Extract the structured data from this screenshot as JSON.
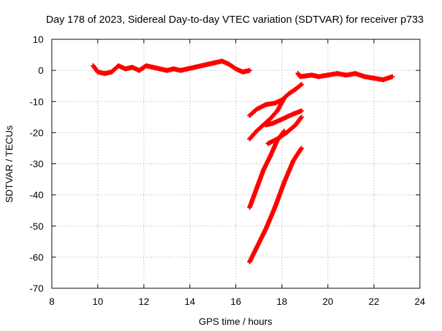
{
  "chart_data": {
    "type": "scatter",
    "title": "Day 178 of 2023, Sidereal Day-to-day VTEC variation (SDTVAR) for receiver p733",
    "xlabel": "GPS time / hours",
    "ylabel": "SDTVAR / TECUs",
    "xlim": [
      8,
      24
    ],
    "ylim": [
      -70,
      10
    ],
    "xticks": [
      8,
      10,
      12,
      14,
      16,
      18,
      20,
      22,
      24
    ],
    "yticks": [
      10,
      0,
      -10,
      -20,
      -30,
      -40,
      -50,
      -60,
      -70
    ],
    "grid": true,
    "marker_color": "#ff0000",
    "series": [
      {
        "x": [
          9.8,
          10.0,
          10.3,
          10.6,
          10.9,
          11.2,
          11.5,
          11.8,
          12.1,
          12.4,
          12.7,
          13.0,
          13.3,
          13.6,
          13.9,
          14.2,
          14.5,
          14.8,
          15.1,
          15.4,
          15.7,
          16.0,
          16.3,
          16.6
        ],
        "y": [
          1.5,
          -0.5,
          -1.0,
          -0.5,
          1.5,
          0.5,
          1.0,
          0.0,
          1.5,
          1.0,
          0.5,
          0.0,
          0.5,
          0.0,
          0.5,
          1.0,
          1.5,
          2.0,
          2.5,
          3.0,
          2.0,
          0.5,
          -0.5,
          0.0
        ]
      },
      {
        "x": [
          18.7,
          18.8,
          19.3,
          19.6,
          20.0,
          20.4,
          20.8,
          21.2,
          21.6,
          22.0,
          22.4,
          22.8
        ],
        "y": [
          -1.0,
          -2.0,
          -1.5,
          -2.0,
          -1.5,
          -1.0,
          -1.5,
          -1.0,
          -2.0,
          -2.5,
          -3.0,
          -2.0
        ]
      },
      {
        "x": [
          16.6,
          16.9,
          17.3,
          17.7,
          18.0,
          18.3,
          18.6,
          18.85
        ],
        "y": [
          -14.5,
          -12.5,
          -11.0,
          -10.5,
          -9.5,
          -7.5,
          -6.0,
          -4.5
        ]
      },
      {
        "x": [
          16.6,
          16.9,
          17.2,
          17.5,
          17.8,
          18.1
        ],
        "y": [
          -22.0,
          -19.5,
          -17.5,
          -15.5,
          -13.0,
          -9.0
        ]
      },
      {
        "x": [
          17.3,
          17.6,
          17.9,
          18.2,
          18.5,
          18.85
        ],
        "y": [
          -17.5,
          -17.0,
          -16.0,
          -15.0,
          -14.0,
          -13.0
        ]
      },
      {
        "x": [
          17.4,
          17.8,
          18.2,
          18.6,
          18.85
        ],
        "y": [
          -23.5,
          -22.0,
          -20.0,
          -17.5,
          -15.0
        ]
      },
      {
        "x": [
          16.6,
          16.9,
          17.2,
          17.5,
          17.8,
          18.1
        ],
        "y": [
          -44.0,
          -38.0,
          -32.0,
          -27.5,
          -22.5,
          -19.5
        ]
      },
      {
        "x": [
          16.6,
          16.9,
          17.3,
          17.7,
          18.1,
          18.5,
          18.85
        ],
        "y": [
          -61.5,
          -57.0,
          -51.0,
          -44.0,
          -36.0,
          -29.0,
          -25.0
        ]
      }
    ]
  }
}
